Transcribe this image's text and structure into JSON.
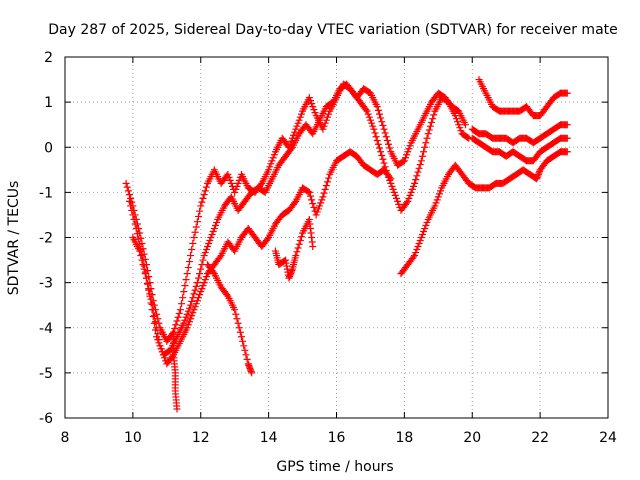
{
  "chart_data": {
    "type": "scatter",
    "title": "Day 287 of 2025, Sidereal Day-to-day VTEC variation (SDTVAR) for receiver mate",
    "xlabel": "GPS time / hours",
    "ylabel": "SDTVAR / TECUs",
    "xlim": [
      8,
      24
    ],
    "ylim": [
      -6,
      2
    ],
    "xticks": [
      8,
      10,
      12,
      14,
      16,
      18,
      20,
      22,
      24
    ],
    "yticks": [
      -6,
      -5,
      -4,
      -3,
      -2,
      -1,
      0,
      1,
      2
    ],
    "grid": true,
    "marker": "+",
    "color": "#ff0000",
    "series": [
      {
        "name": "track-1",
        "points": [
          [
            9.8,
            -0.8
          ],
          [
            10.0,
            -1.3
          ],
          [
            10.2,
            -1.9
          ],
          [
            10.4,
            -2.6
          ],
          [
            10.6,
            -3.4
          ],
          [
            10.8,
            -4.0
          ],
          [
            11.0,
            -4.3
          ],
          [
            11.2,
            -4.1
          ],
          [
            11.4,
            -3.6
          ],
          [
            11.6,
            -2.8
          ],
          [
            11.8,
            -2.0
          ],
          [
            12.0,
            -1.3
          ],
          [
            12.2,
            -0.8
          ],
          [
            12.4,
            -0.5
          ],
          [
            12.6,
            -0.8
          ],
          [
            12.8,
            -0.6
          ],
          [
            13.0,
            -1.0
          ],
          [
            13.2,
            -0.6
          ],
          [
            13.4,
            -0.9
          ],
          [
            13.6,
            -1.0
          ],
          [
            13.8,
            -0.8
          ],
          [
            14.0,
            -0.5
          ],
          [
            14.2,
            -0.1
          ],
          [
            14.4,
            0.2
          ],
          [
            14.6,
            0.0
          ],
          [
            14.8,
            0.4
          ],
          [
            15.0,
            0.8
          ],
          [
            15.2,
            1.1
          ],
          [
            15.4,
            0.7
          ],
          [
            15.6,
            0.4
          ],
          [
            15.8,
            0.8
          ],
          [
            16.0,
            1.1
          ],
          [
            16.2,
            1.4
          ],
          [
            16.4,
            1.3
          ],
          [
            16.6,
            1.1
          ],
          [
            16.8,
            1.3
          ],
          [
            17.0,
            1.2
          ],
          [
            17.2,
            0.9
          ],
          [
            17.4,
            0.4
          ],
          [
            17.6,
            -0.1
          ],
          [
            17.8,
            -0.4
          ],
          [
            18.0,
            -0.3
          ],
          [
            18.2,
            0.1
          ],
          [
            18.4,
            0.4
          ],
          [
            18.6,
            0.7
          ],
          [
            18.8,
            1.0
          ],
          [
            19.0,
            1.2
          ],
          [
            19.2,
            1.1
          ],
          [
            19.4,
            0.9
          ],
          [
            19.6,
            0.8
          ],
          [
            19.8,
            0.5
          ]
        ]
      },
      {
        "name": "track-2",
        "points": [
          [
            9.9,
            -1.2
          ],
          [
            10.1,
            -1.8
          ],
          [
            10.3,
            -2.5
          ],
          [
            10.5,
            -3.3
          ],
          [
            10.7,
            -4.2
          ],
          [
            10.9,
            -4.6
          ],
          [
            11.1,
            -4.5
          ],
          [
            11.3,
            -4.2
          ],
          [
            11.5,
            -3.9
          ],
          [
            11.7,
            -3.5
          ],
          [
            11.9,
            -3.0
          ],
          [
            12.1,
            -2.4
          ],
          [
            12.3,
            -2.0
          ],
          [
            12.5,
            -1.6
          ],
          [
            12.7,
            -1.3
          ],
          [
            12.9,
            -1.1
          ],
          [
            13.1,
            -1.4
          ],
          [
            13.3,
            -1.2
          ],
          [
            13.5,
            -1.0
          ],
          [
            13.7,
            -0.9
          ],
          [
            13.9,
            -1.0
          ],
          [
            14.1,
            -0.7
          ],
          [
            14.3,
            -0.4
          ],
          [
            14.5,
            -0.2
          ],
          [
            14.7,
            0.0
          ],
          [
            14.9,
            0.3
          ],
          [
            15.1,
            0.5
          ],
          [
            15.3,
            0.3
          ],
          [
            15.5,
            0.6
          ],
          [
            15.7,
            0.9
          ],
          [
            15.9,
            1.0
          ],
          [
            16.1,
            1.3
          ],
          [
            16.3,
            1.4
          ],
          [
            16.5,
            1.2
          ],
          [
            16.7,
            1.0
          ],
          [
            16.9,
            0.8
          ],
          [
            17.1,
            0.4
          ],
          [
            17.3,
            -0.1
          ],
          [
            17.5,
            -0.6
          ],
          [
            17.7,
            -1.0
          ],
          [
            17.9,
            -1.4
          ],
          [
            18.1,
            -1.2
          ],
          [
            18.3,
            -0.8
          ],
          [
            18.5,
            -0.3
          ],
          [
            18.7,
            0.3
          ],
          [
            18.9,
            0.8
          ],
          [
            19.1,
            1.1
          ],
          [
            19.3,
            1.0
          ],
          [
            19.5,
            0.7
          ],
          [
            19.7,
            0.3
          ],
          [
            19.9,
            0.2
          ]
        ]
      },
      {
        "name": "track-3",
        "points": [
          [
            10.0,
            -2.0
          ],
          [
            10.2,
            -2.3
          ],
          [
            10.4,
            -2.9
          ],
          [
            10.6,
            -3.6
          ],
          [
            10.8,
            -4.4
          ],
          [
            11.0,
            -4.8
          ],
          [
            11.2,
            -4.6
          ],
          [
            11.4,
            -4.3
          ],
          [
            11.6,
            -4.0
          ],
          [
            11.8,
            -3.6
          ],
          [
            12.0,
            -3.2
          ],
          [
            12.2,
            -2.8
          ],
          [
            12.4,
            -2.6
          ],
          [
            12.6,
            -2.4
          ],
          [
            12.8,
            -2.1
          ],
          [
            13.0,
            -2.3
          ],
          [
            13.2,
            -2.0
          ],
          [
            13.4,
            -1.8
          ],
          [
            13.6,
            -2.0
          ],
          [
            13.8,
            -2.2
          ],
          [
            14.0,
            -2.0
          ],
          [
            14.2,
            -1.7
          ],
          [
            14.4,
            -1.5
          ],
          [
            14.6,
            -1.4
          ],
          [
            14.8,
            -1.2
          ],
          [
            15.0,
            -0.9
          ],
          [
            15.2,
            -1.0
          ],
          [
            15.4,
            -1.5
          ],
          [
            15.6,
            -1.1
          ],
          [
            15.8,
            -0.6
          ],
          [
            16.0,
            -0.3
          ],
          [
            16.2,
            -0.2
          ],
          [
            16.4,
            -0.1
          ],
          [
            16.6,
            -0.2
          ],
          [
            16.8,
            -0.4
          ],
          [
            17.0,
            -0.5
          ],
          [
            17.2,
            -0.6
          ],
          [
            17.4,
            -0.5
          ],
          [
            17.6,
            -0.7
          ]
        ]
      },
      {
        "name": "track-4",
        "points": [
          [
            12.2,
            -2.6
          ],
          [
            12.4,
            -2.8
          ],
          [
            12.6,
            -3.1
          ],
          [
            12.8,
            -3.3
          ],
          [
            13.0,
            -3.6
          ],
          [
            13.2,
            -4.2
          ],
          [
            13.4,
            -4.8
          ],
          [
            13.5,
            -5.0
          ]
        ]
      },
      {
        "name": "track-5",
        "points": [
          [
            11.2,
            -4.2
          ],
          [
            11.2,
            -4.6
          ],
          [
            11.25,
            -5.0
          ],
          [
            11.25,
            -5.4
          ],
          [
            11.3,
            -5.8
          ]
        ]
      },
      {
        "name": "track-6",
        "points": [
          [
            14.2,
            -2.3
          ],
          [
            14.3,
            -2.6
          ],
          [
            14.5,
            -2.5
          ],
          [
            14.6,
            -2.9
          ],
          [
            14.7,
            -2.7
          ],
          [
            14.8,
            -2.4
          ],
          [
            15.0,
            -1.9
          ],
          [
            15.2,
            -1.6
          ],
          [
            15.3,
            -2.2
          ]
        ]
      },
      {
        "name": "track-7",
        "points": [
          [
            17.9,
            -2.8
          ],
          [
            18.1,
            -2.6
          ],
          [
            18.3,
            -2.4
          ],
          [
            18.5,
            -2.0
          ],
          [
            18.7,
            -1.6
          ],
          [
            18.9,
            -1.3
          ],
          [
            19.1,
            -0.9
          ],
          [
            19.3,
            -0.6
          ],
          [
            19.5,
            -0.4
          ],
          [
            19.7,
            -0.6
          ],
          [
            19.9,
            -0.8
          ],
          [
            20.1,
            -0.9
          ],
          [
            20.3,
            -0.9
          ],
          [
            20.5,
            -0.9
          ],
          [
            20.7,
            -0.8
          ],
          [
            20.9,
            -0.8
          ],
          [
            21.1,
            -0.7
          ],
          [
            21.3,
            -0.6
          ],
          [
            21.5,
            -0.5
          ],
          [
            21.7,
            -0.6
          ],
          [
            21.9,
            -0.7
          ],
          [
            22.0,
            -0.5
          ],
          [
            22.2,
            -0.3
          ],
          [
            22.4,
            -0.2
          ],
          [
            22.6,
            -0.1
          ],
          [
            22.8,
            -0.1
          ]
        ]
      },
      {
        "name": "track-8",
        "points": [
          [
            20.2,
            1.5
          ],
          [
            20.4,
            1.2
          ],
          [
            20.6,
            0.9
          ],
          [
            20.8,
            0.8
          ],
          [
            21.0,
            0.8
          ],
          [
            21.2,
            0.8
          ],
          [
            21.4,
            0.8
          ],
          [
            21.6,
            0.9
          ],
          [
            21.8,
            0.7
          ],
          [
            22.0,
            0.7
          ],
          [
            22.2,
            0.9
          ],
          [
            22.4,
            1.1
          ],
          [
            22.6,
            1.2
          ],
          [
            22.8,
            1.2
          ]
        ]
      },
      {
        "name": "track-9",
        "points": [
          [
            20.0,
            0.4
          ],
          [
            20.2,
            0.3
          ],
          [
            20.4,
            0.3
          ],
          [
            20.6,
            0.2
          ],
          [
            20.8,
            0.2
          ],
          [
            21.0,
            0.2
          ],
          [
            21.2,
            0.1
          ],
          [
            21.4,
            0.2
          ],
          [
            21.6,
            0.2
          ],
          [
            21.8,
            0.1
          ],
          [
            22.0,
            0.2
          ],
          [
            22.2,
            0.3
          ],
          [
            22.4,
            0.4
          ],
          [
            22.6,
            0.5
          ],
          [
            22.8,
            0.5
          ]
        ]
      },
      {
        "name": "track-10",
        "points": [
          [
            20.0,
            0.2
          ],
          [
            20.2,
            0.1
          ],
          [
            20.4,
            0.0
          ],
          [
            20.6,
            -0.1
          ],
          [
            20.8,
            -0.1
          ],
          [
            21.0,
            -0.2
          ],
          [
            21.2,
            -0.1
          ],
          [
            21.4,
            -0.2
          ],
          [
            21.6,
            -0.3
          ],
          [
            21.8,
            -0.3
          ],
          [
            22.0,
            -0.1
          ],
          [
            22.2,
            0.0
          ],
          [
            22.4,
            0.1
          ],
          [
            22.6,
            0.2
          ],
          [
            22.8,
            0.2
          ]
        ]
      }
    ]
  }
}
